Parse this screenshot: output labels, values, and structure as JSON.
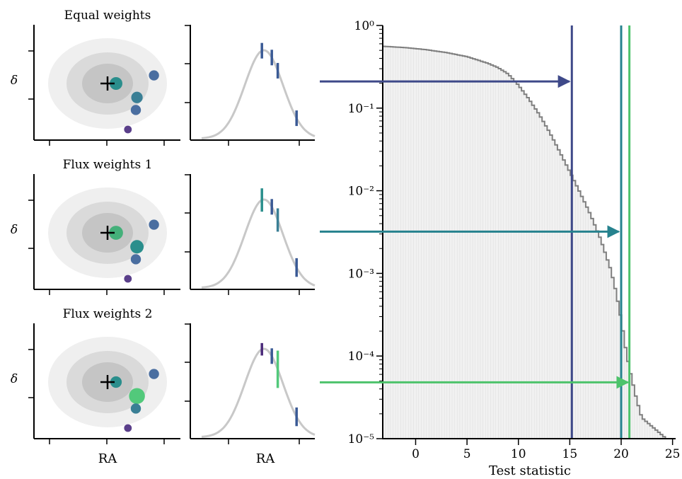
{
  "panels": [
    {
      "title": "Equal weights",
      "ylabel": "δ",
      "xlabel": "",
      "sources": [
        {
          "ra": 0.15,
          "dec": 0.0,
          "size": 1.0,
          "color": "#2a8e8c"
        },
        {
          "ra": 0.82,
          "dec": 0.22,
          "size": 0.8,
          "color": "#4a6ea0"
        },
        {
          "ra": 0.52,
          "dec": -0.38,
          "size": 0.9,
          "color": "#3a7f95"
        },
        {
          "ra": 0.5,
          "dec": -0.72,
          "size": 0.8,
          "color": "#4a6ea0"
        },
        {
          "ra": 0.36,
          "dec": -1.25,
          "size": 0.6,
          "color": "#5a3f8a"
        }
      ],
      "ra_markers": [
        {
          "x": 0.18,
          "height": 1.0,
          "color": "#3a5a95"
        },
        {
          "x": 0.28,
          "height": 1.0,
          "color": "#3a5a95"
        },
        {
          "x": 0.34,
          "height": 1.0,
          "color": "#3a5a95"
        },
        {
          "x": 0.53,
          "height": 1.0,
          "color": "#3a5a95"
        }
      ],
      "arrow_ts": 15.1,
      "arrow_p": 0.21,
      "color": "#3e4989"
    },
    {
      "title": "Flux weights 1",
      "ylabel": "δ",
      "xlabel": "",
      "sources": [
        {
          "ra": 0.15,
          "dec": 0.0,
          "size": 1.1,
          "color": "#44b07a"
        },
        {
          "ra": 0.82,
          "dec": 0.22,
          "size": 0.8,
          "color": "#4a6ea0"
        },
        {
          "ra": 0.52,
          "dec": -0.38,
          "size": 1.05,
          "color": "#2a8e8c"
        },
        {
          "ra": 0.5,
          "dec": -0.72,
          "size": 0.8,
          "color": "#4a6ea0"
        },
        {
          "ra": 0.36,
          "dec": -1.25,
          "size": 0.6,
          "color": "#5a3f8a"
        }
      ],
      "ra_markers": [
        {
          "x": 0.18,
          "height": 1.5,
          "color": "#2a8e8c"
        },
        {
          "x": 0.28,
          "height": 1.0,
          "color": "#3a5a95"
        },
        {
          "x": 0.34,
          "height": 1.5,
          "color": "#3a7f95"
        },
        {
          "x": 0.53,
          "height": 1.2,
          "color": "#3a5a95"
        }
      ],
      "arrow_ts": 19.9,
      "arrow_p": 0.0032,
      "color": "#26828e"
    },
    {
      "title": "Flux weights 2",
      "ylabel": "δ",
      "xlabel": "RA",
      "sources": [
        {
          "ra": 0.15,
          "dec": 0.0,
          "size": 0.9,
          "color": "#2a8e8c"
        },
        {
          "ra": 0.82,
          "dec": 0.22,
          "size": 0.8,
          "color": "#4a6ea0"
        },
        {
          "ra": 0.52,
          "dec": -0.38,
          "size": 1.25,
          "color": "#52c97b"
        },
        {
          "ra": 0.5,
          "dec": -0.72,
          "size": 0.8,
          "color": "#3a7f95"
        },
        {
          "ra": 0.36,
          "dec": -1.25,
          "size": 0.6,
          "color": "#5a3f8a"
        }
      ],
      "ra_markers": [
        {
          "x": 0.18,
          "height": 0.8,
          "color": "#4a2a7a"
        },
        {
          "x": 0.28,
          "height": 1.0,
          "color": "#3a5a95"
        },
        {
          "x": 0.34,
          "height": 2.4,
          "color": "#52c97b"
        },
        {
          "x": 0.53,
          "height": 1.2,
          "color": "#3a5a95"
        }
      ],
      "arrow_ts": 20.8,
      "arrow_p": 4.8e-05,
      "color": "#4dc36b"
    }
  ],
  "dist_xlabel": "RA",
  "chart_data": {
    "type": "area",
    "title": "",
    "xlabel": "Test statistic",
    "ylabel": "",
    "xlim": [
      -3.2,
      25.3
    ],
    "ylim": [
      1e-05,
      1
    ],
    "yscale": "log",
    "xticks": [
      0,
      5,
      10,
      15,
      20,
      25
    ],
    "ytick_labels": [
      "10⁰",
      "10⁻¹",
      "10⁻²",
      "10⁻³",
      "10⁻⁴",
      "10⁻⁵"
    ],
    "survival_curve": {
      "x": [
        -3.2,
        -1,
        1,
        3,
        5,
        7,
        8,
        9,
        10,
        11,
        12,
        13,
        14,
        15,
        16,
        17,
        18,
        19,
        19.5,
        20,
        20.5,
        21,
        21.5,
        22,
        24.4
      ],
      "y": [
        0.56,
        0.54,
        0.51,
        0.47,
        0.42,
        0.35,
        0.31,
        0.26,
        0.19,
        0.13,
        0.085,
        0.052,
        0.03,
        0.017,
        0.0095,
        0.0052,
        0.0026,
        0.0011,
        0.0006,
        0.00028,
        0.00011,
        5.5e-05,
        3e-05,
        1.8e-05,
        1e-05
      ]
    },
    "vertical_lines": [
      {
        "x": 15.2,
        "color": "#3e4989"
      },
      {
        "x": 20.0,
        "color": "#26828e"
      },
      {
        "x": 20.8,
        "color": "#4dc36b"
      }
    ]
  }
}
